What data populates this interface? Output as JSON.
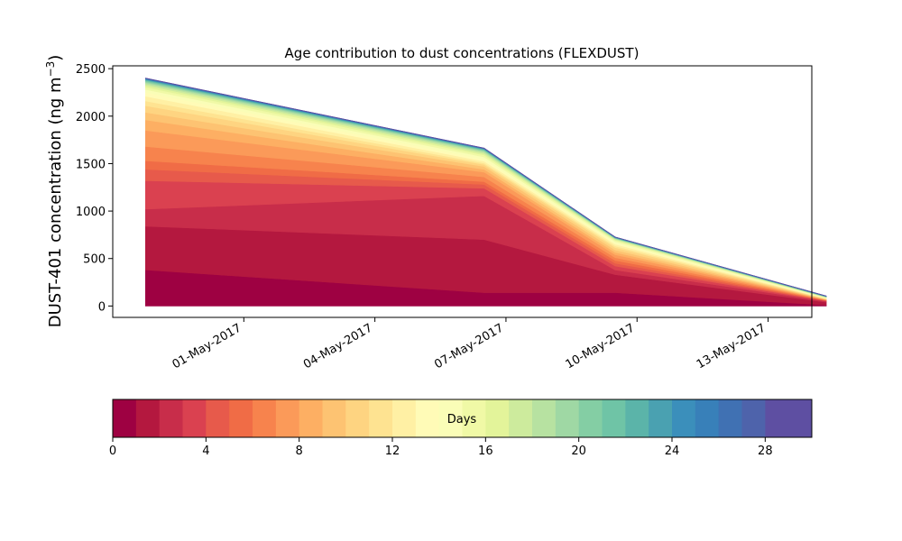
{
  "chart_data": {
    "type": "area",
    "title": "Age contribution to dust concentrations (FLEXDUST)",
    "xlabel": "",
    "ylabel": "DUST-401 concentration (ng m",
    "ylabel_sup": "−3",
    "ylabel_close": ")",
    "ylim": [
      -120,
      2530
    ],
    "xlim": [
      "2017-04-28",
      "2017-05-14"
    ],
    "y_ticks": [
      0,
      500,
      1000,
      1500,
      2000,
      2500
    ],
    "x_ticks": [
      "2017-05-01",
      "2017-05-04",
      "2017-05-07",
      "2017-05-10",
      "2017-05-13"
    ],
    "x_tick_labels": [
      "01-May-2017",
      "04-May-2017",
      "07-May-2017",
      "10-May-2017",
      "13-May-2017"
    ],
    "grid": false,
    "x": [
      "2017-04-28 18:00",
      "2017-05-06 12:00",
      "2017-05-09 12:00",
      "2017-05-14 08:00"
    ],
    "layer_boundaries": [
      [
        0,
        0,
        0,
        0
      ],
      [
        380,
        140,
        140,
        10
      ],
      [
        840,
        700,
        330,
        40
      ],
      [
        1020,
        1160,
        380,
        50
      ],
      [
        1320,
        1240,
        420,
        55
      ],
      [
        1440,
        1280,
        450,
        58
      ],
      [
        1530,
        1310,
        480,
        60
      ],
      [
        1680,
        1360,
        510,
        63
      ],
      [
        1850,
        1410,
        540,
        66
      ],
      [
        1960,
        1440,
        565,
        68
      ],
      [
        2040,
        1470,
        590,
        71
      ],
      [
        2110,
        1490,
        615,
        74
      ],
      [
        2160,
        1505,
        632,
        77
      ],
      [
        2210,
        1525,
        650,
        80
      ],
      [
        2250,
        1545,
        665,
        83
      ],
      [
        2280,
        1570,
        680,
        86
      ],
      [
        2305,
        1590,
        692,
        89
      ],
      [
        2325,
        1605,
        700,
        92
      ],
      [
        2340,
        1618,
        706,
        94
      ],
      [
        2352,
        1628,
        710,
        96
      ],
      [
        2362,
        1636,
        713,
        97
      ],
      [
        2370,
        1642,
        716,
        98
      ],
      [
        2377,
        1647,
        718,
        99
      ],
      [
        2383,
        1651,
        720,
        100
      ],
      [
        2388,
        1654,
        722,
        101
      ],
      [
        2392,
        1657,
        723,
        102
      ],
      [
        2395,
        1659,
        724,
        103
      ],
      [
        2397,
        1661,
        725,
        104
      ],
      [
        2399,
        1662,
        726,
        105
      ],
      [
        2400,
        1663,
        726,
        105
      ],
      [
        2401,
        1664,
        727,
        106
      ]
    ],
    "colorbar": {
      "label": "Days",
      "range": [
        0,
        30
      ],
      "ticks": [
        0,
        4,
        8,
        12,
        16,
        20,
        24,
        28
      ],
      "colors": [
        "#9e0142",
        "#b4183f",
        "#c82d4a",
        "#da4150",
        "#e75a4b",
        "#f06c46",
        "#f7834d",
        "#fb9a59",
        "#fdaf63",
        "#fdc372",
        "#fed481",
        "#fee391",
        "#fff0a4",
        "#fffbb7",
        "#fafdb7",
        "#f0f9a6",
        "#e3f49a",
        "#cdeb9d",
        "#b7e2a1",
        "#9fd8a4",
        "#84cea4",
        "#6fc4a6",
        "#5bb4a9",
        "#4aa1b1",
        "#3b8fbb",
        "#3880b9",
        "#4071b3",
        "#4e63ab",
        "#5e4fa2",
        "#5e4fa2"
      ]
    }
  }
}
